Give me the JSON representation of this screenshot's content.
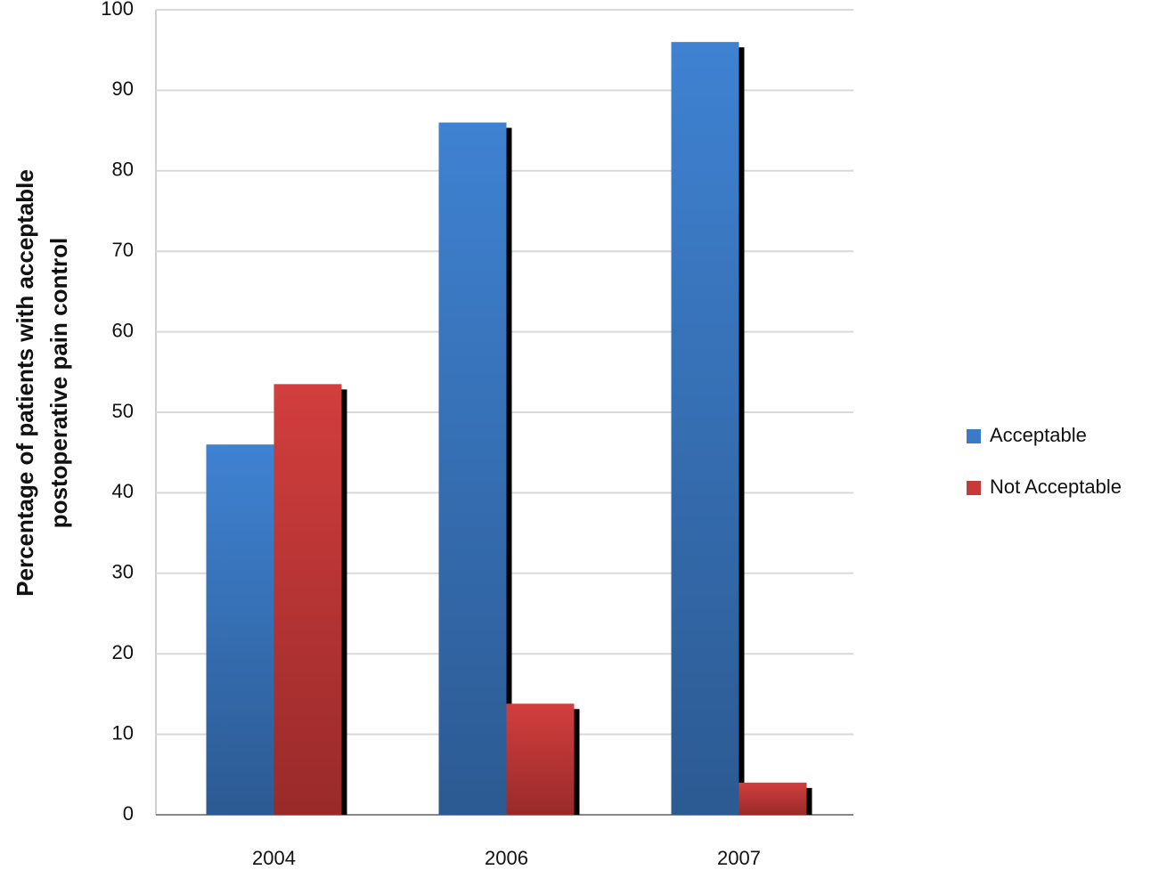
{
  "chart_data": {
    "type": "bar",
    "ylabel": [
      "Percentage of patients with acceptable",
      "postoperative pain control"
    ],
    "categories": [
      "2004",
      "2006",
      "2007"
    ],
    "series": [
      {
        "name": "Acceptable",
        "color": "#3a7bc8",
        "values": [
          46,
          86,
          96
        ]
      },
      {
        "name": "Not Acceptable",
        "color": "#c83a3a",
        "values": [
          53.5,
          13.8,
          4
        ]
      }
    ],
    "ylim": [
      0,
      100
    ],
    "yticks": [
      0,
      10,
      20,
      30,
      40,
      50,
      60,
      70,
      80,
      90,
      100
    ],
    "grid": true,
    "legend": "right"
  }
}
